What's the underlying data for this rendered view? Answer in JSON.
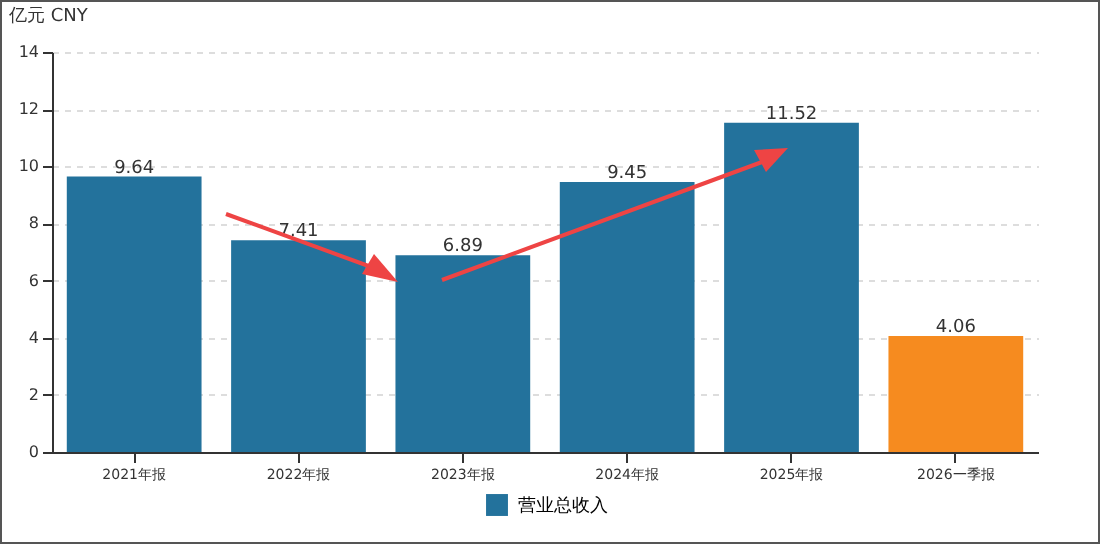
{
  "chart_data": {
    "type": "bar",
    "ylabel": "亿元  CNY",
    "categories": [
      "2021年报",
      "2022年报",
      "2023年报",
      "2024年报",
      "2025年报",
      "2026一季报"
    ],
    "series": [
      {
        "name": "营业总收入",
        "color": "#23729c",
        "colors": [
          "#23729c",
          "#23729c",
          "#23729c",
          "#23729c",
          "#23729c",
          "#f68b1f"
        ],
        "values": [
          9.64,
          7.41,
          6.89,
          9.45,
          11.52,
          4.06
        ]
      }
    ],
    "ylim": [
      0,
      14
    ],
    "yticks": [
      0,
      2,
      4,
      6,
      8,
      10,
      12,
      14
    ],
    "grid": "y",
    "legend": "bottom",
    "data_labels": true
  }
}
